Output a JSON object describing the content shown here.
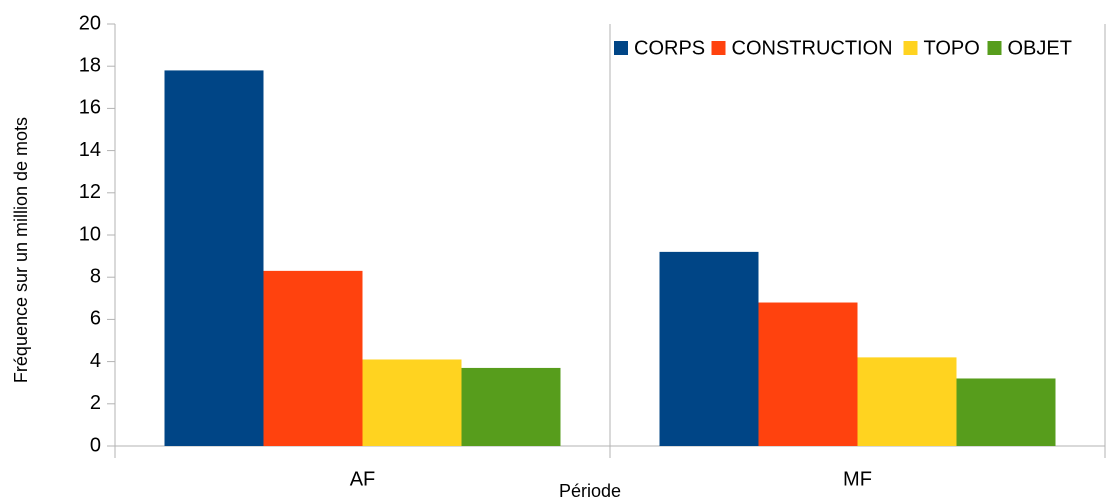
{
  "chart_data": {
    "type": "bar",
    "xlabel": "Période",
    "ylabel": "Fréquence sur un million de mots",
    "categories": [
      "AF",
      "MF"
    ],
    "series": [
      {
        "name": "CORPS",
        "color": "#004586",
        "values": [
          17.8,
          9.2
        ]
      },
      {
        "name": "CONSTRUCTION",
        "color": "#ff420e",
        "values": [
          8.3,
          6.8
        ]
      },
      {
        "name": "TOPO",
        "color": "#ffd320",
        "values": [
          4.1,
          4.2
        ]
      },
      {
        "name": "OBJET",
        "color": "#579d1c",
        "values": [
          3.7,
          3.2
        ]
      }
    ],
    "ylim": [
      0,
      20
    ],
    "yticks": [
      0,
      2,
      4,
      6,
      8,
      10,
      12,
      14,
      16,
      18,
      20
    ],
    "grid": false,
    "legend": "top-right"
  }
}
